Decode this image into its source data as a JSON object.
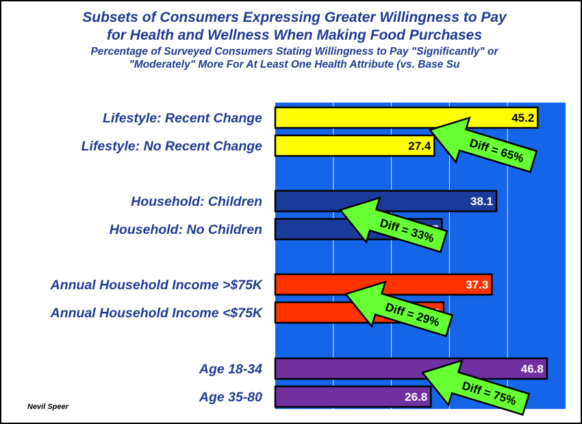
{
  "header": {
    "title_line1": "Subsets of Consumers   Expressing Greater Willingness to Pay",
    "title_line2": "for Health and Wellness When  Making Food Purchases",
    "subtitle_line1": "Percentage of Surveyed Consumers Stating Willingness to Pay \"Significantly\" or",
    "subtitle_line2": "\"Moderately\" More For At Least One Health Attribute (vs. Base Su"
  },
  "credit": "Nevil Speer",
  "colors": {
    "plot_background": "#1565e8",
    "gridline": "#dfe9ff",
    "arrow": "#66ff33",
    "label_text": "#1f3a93"
  },
  "chart_data": {
    "type": "bar",
    "orientation": "horizontal",
    "title": "Subsets of Consumers   Expressing Greater Willingness to Pay for Health and Wellness When  Making Food Purchases",
    "xlim": [
      0,
      50
    ],
    "grid": true,
    "categories": [
      "Lifestyle: Recent Change",
      "Lifestyle: No Recent Change",
      "Household: Children",
      "Household:  No Children",
      "Annual Household Income >$75K",
      "Annual Household Income <$75K",
      "Age 18-34",
      "Age 35-80"
    ],
    "values": [
      45.2,
      27.4,
      38.1,
      28.7,
      37.3,
      29.0,
      46.8,
      26.8
    ],
    "value_labels": [
      "45.2",
      "27.4",
      "38.1",
      "28.7",
      "37.3",
      "29.0",
      "46.8",
      "26.8"
    ],
    "bar_colors": [
      "#ffff00",
      "#ffff00",
      "#1a3a9c",
      "#1a3a9c",
      "#ff3300",
      "#ff3300",
      "#7030a0",
      "#7030a0"
    ],
    "value_label_colors": [
      "#000000",
      "#000000",
      "#ffffff",
      "#ffffff",
      "#ffffff",
      "#ffffff",
      "#ffffff",
      "#ffffff"
    ],
    "annotations": [
      "Diff = 65%",
      "Diff = 33%",
      "Diff = 29%",
      "Diff = 75%"
    ]
  }
}
